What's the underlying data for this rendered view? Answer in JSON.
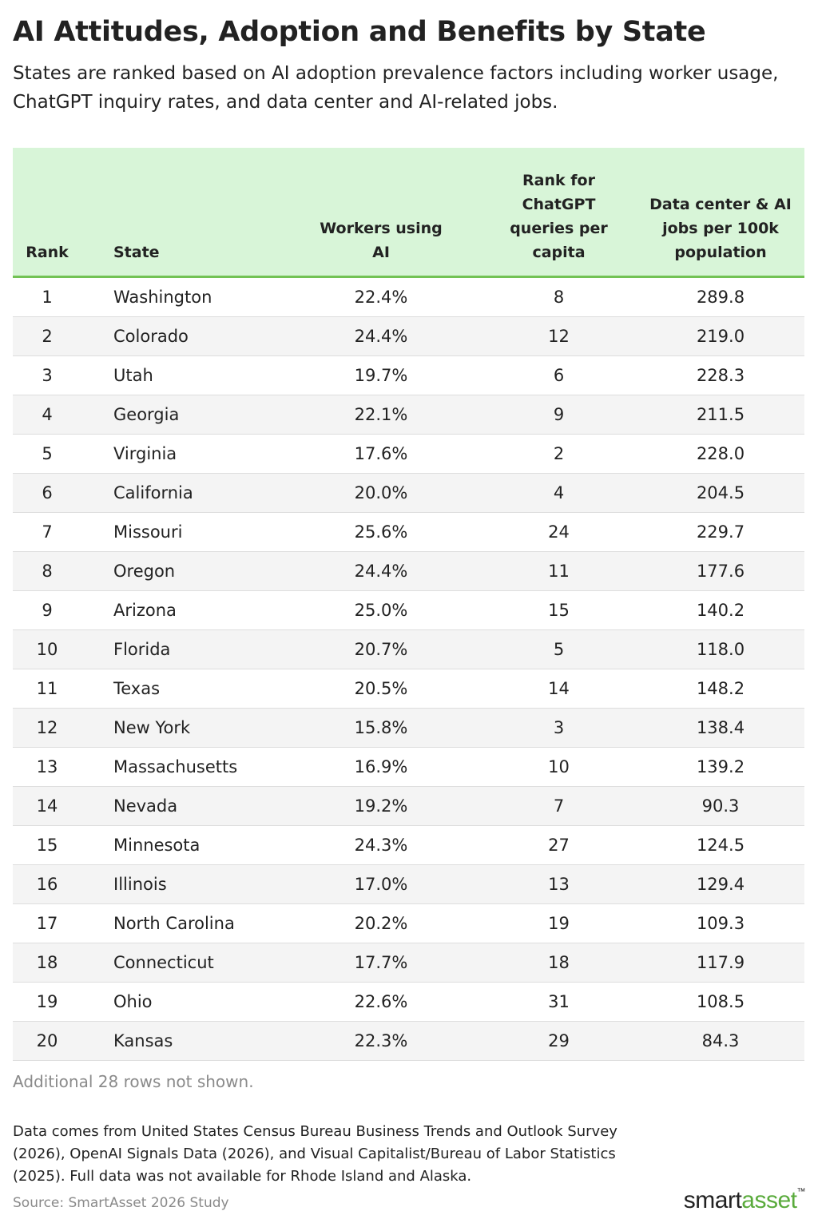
{
  "title": "AI Attitudes, Adoption and Benefits by State",
  "subtitle": "States are ranked based on AI adoption prevalence factors including worker usage, ChatGPT inquiry rates, and data center and AI-related jobs.",
  "colors": {
    "header_bg": "#d8f5d8",
    "header_rule": "#72c254",
    "row_alt_bg": "#f4f4f4",
    "brand_green": "#5aab3c"
  },
  "chart_data": {
    "type": "table",
    "title": "AI Attitudes, Adoption and Benefits by State",
    "columns": [
      "Rank",
      "State",
      "Workers using AI",
      "Rank for ChatGPT queries per capita",
      "Data center & AI jobs per 100k population"
    ],
    "rows": [
      [
        "1",
        "Washington",
        "22.4%",
        "8",
        "289.8"
      ],
      [
        "2",
        "Colorado",
        "24.4%",
        "12",
        "219.0"
      ],
      [
        "3",
        "Utah",
        "19.7%",
        "6",
        "228.3"
      ],
      [
        "4",
        "Georgia",
        "22.1%",
        "9",
        "211.5"
      ],
      [
        "5",
        "Virginia",
        "17.6%",
        "2",
        "228.0"
      ],
      [
        "6",
        "California",
        "20.0%",
        "4",
        "204.5"
      ],
      [
        "7",
        "Missouri",
        "25.6%",
        "24",
        "229.7"
      ],
      [
        "8",
        "Oregon",
        "24.4%",
        "11",
        "177.6"
      ],
      [
        "9",
        "Arizona",
        "25.0%",
        "15",
        "140.2"
      ],
      [
        "10",
        "Florida",
        "20.7%",
        "5",
        "118.0"
      ],
      [
        "11",
        "Texas",
        "20.5%",
        "14",
        "148.2"
      ],
      [
        "12",
        "New York",
        "15.8%",
        "3",
        "138.4"
      ],
      [
        "13",
        "Massachusetts",
        "16.9%",
        "10",
        "139.2"
      ],
      [
        "14",
        "Nevada",
        "19.2%",
        "7",
        "90.3"
      ],
      [
        "15",
        "Minnesota",
        "24.3%",
        "27",
        "124.5"
      ],
      [
        "16",
        "Illinois",
        "17.0%",
        "13",
        "129.4"
      ],
      [
        "17",
        "North Carolina",
        "20.2%",
        "19",
        "109.3"
      ],
      [
        "18",
        "Connecticut",
        "17.7%",
        "18",
        "117.9"
      ],
      [
        "19",
        "Ohio",
        "22.6%",
        "31",
        "108.5"
      ],
      [
        "20",
        "Kansas",
        "22.3%",
        "29",
        "84.3"
      ]
    ]
  },
  "note": "Additional 28 rows not shown.",
  "footnote": "Data comes from United States Census Bureau Business Trends and Outlook Survey (2026), OpenAI Signals Data (2026), and Visual Capitalist/Bureau of Labor Statistics (2025). Full data was not available for Rhode Island and Alaska.",
  "source": "Source: SmartAsset 2026 Study",
  "logo": {
    "part1": "smart",
    "part2": "asset",
    "mark": "™"
  }
}
